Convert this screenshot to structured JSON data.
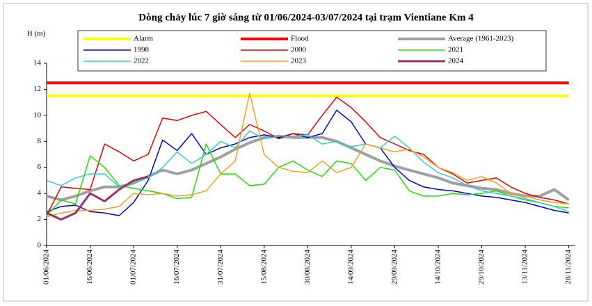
{
  "chart_data": {
    "type": "line",
    "title": "Dòng chảy lúc 7 giờ sáng từ 01/06/2024-03/07/2024 tại trạm Vientiane Km 4",
    "y_label": "H (m)",
    "x": [
      "01/06/2024",
      "06/06/2024",
      "11/06/2024",
      "16/06/2024",
      "21/06/2024",
      "26/06/2024",
      "01/07/2024",
      "06/07/2024",
      "11/07/2024",
      "16/07/2024",
      "21/07/2024",
      "26/07/2024",
      "31/07/2024",
      "05/08/2024",
      "10/08/2024",
      "15/08/2024",
      "20/08/2024",
      "25/08/2024",
      "30/08/2024",
      "04/09/2024",
      "09/09/2024",
      "14/09/2024",
      "19/09/2024",
      "24/09/2024",
      "29/09/2024",
      "04/10/2024",
      "09/10/2024",
      "14/10/2024",
      "19/10/2024",
      "24/10/2024",
      "29/10/2024",
      "03/11/2024",
      "08/11/2024",
      "13/11/2024",
      "18/11/2024",
      "23/11/2024",
      "28/11/2024"
    ],
    "xlim": [
      "01/06/2024",
      "30/11/2024"
    ],
    "xticks": [
      "01/06/2024",
      "16/06/2024",
      "01/07/2024",
      "16/07/2024",
      "31/07/2024",
      "15/08/2024",
      "30/08/2024",
      "14/09/2024",
      "29/09/2024",
      "14/10/2024",
      "29/10/2024",
      "13/11/2024",
      "28/11/2024"
    ],
    "ylim": [
      0,
      14
    ],
    "yticks": [
      0,
      2,
      4,
      6,
      8,
      10,
      12,
      14
    ],
    "series": [
      {
        "name": "Alarm",
        "color": "#ffff00",
        "line_width": 4,
        "values": [
          11.5,
          11.5,
          11.5,
          11.5,
          11.5,
          11.5,
          11.5,
          11.5,
          11.5,
          11.5,
          11.5,
          11.5,
          11.5,
          11.5,
          11.5,
          11.5,
          11.5,
          11.5,
          11.5,
          11.5,
          11.5,
          11.5,
          11.5,
          11.5,
          11.5,
          11.5,
          11.5,
          11.5,
          11.5,
          11.5,
          11.5,
          11.5,
          11.5,
          11.5,
          11.5,
          11.5,
          11.5
        ]
      },
      {
        "name": "Flood",
        "color": "#ff0000",
        "line_width": 4,
        "values": [
          12.5,
          12.5,
          12.5,
          12.5,
          12.5,
          12.5,
          12.5,
          12.5,
          12.5,
          12.5,
          12.5,
          12.5,
          12.5,
          12.5,
          12.5,
          12.5,
          12.5,
          12.5,
          12.5,
          12.5,
          12.5,
          12.5,
          12.5,
          12.5,
          12.5,
          12.5,
          12.5,
          12.5,
          12.5,
          12.5,
          12.5,
          12.5,
          12.5,
          12.5,
          12.5,
          12.5,
          12.5
        ]
      },
      {
        "name": "Average (1961-2023)",
        "color": "#a0a0a0",
        "line_width": 4,
        "values": [
          3.8,
          3.5,
          3.8,
          4.2,
          4.5,
          4.5,
          4.8,
          5.3,
          5.8,
          5.5,
          5.8,
          6.3,
          6.8,
          7.4,
          7.9,
          8.3,
          8.4,
          8.3,
          8.3,
          8.3,
          8.0,
          7.5,
          7.0,
          6.5,
          6.1,
          5.8,
          5.5,
          5.2,
          4.8,
          4.6,
          4.4,
          4.3,
          4.0,
          3.8,
          3.8,
          4.3,
          3.5
        ]
      },
      {
        "name": "1998",
        "color": "#0000cc",
        "line_width": 1.5,
        "values": [
          2.6,
          3.0,
          3.1,
          2.6,
          2.5,
          2.3,
          3.3,
          5.0,
          8.1,
          7.3,
          8.6,
          7.0,
          7.5,
          7.8,
          8.3,
          8.5,
          8.3,
          8.6,
          8.3,
          8.6,
          10.4,
          9.5,
          7.8,
          7.5,
          6.0,
          5.0,
          4.5,
          4.3,
          4.2,
          4.0,
          3.8,
          3.7,
          3.5,
          3.3,
          3.0,
          2.7,
          2.5
        ]
      },
      {
        "name": "2000",
        "color": "#e00000",
        "line_width": 1.5,
        "values": [
          2.3,
          4.5,
          4.4,
          4.3,
          7.8,
          7.2,
          6.5,
          7.0,
          9.8,
          9.6,
          10.0,
          10.3,
          9.3,
          8.3,
          9.3,
          8.8,
          8.2,
          8.6,
          8.5,
          10.0,
          11.4,
          10.6,
          9.5,
          8.3,
          7.8,
          7.3,
          7.0,
          6.0,
          5.5,
          4.8,
          5.0,
          5.2,
          4.5,
          4.0,
          3.7,
          3.5,
          3.2
        ]
      },
      {
        "name": "2021",
        "color": "#22dd00",
        "line_width": 1.5,
        "values": [
          2.3,
          3.5,
          3.2,
          6.9,
          6.0,
          4.6,
          4.4,
          4.2,
          4.0,
          3.6,
          3.7,
          7.8,
          5.5,
          5.5,
          4.6,
          4.7,
          6.0,
          6.5,
          5.8,
          5.3,
          6.5,
          6.3,
          5.0,
          6.0,
          5.8,
          4.2,
          3.8,
          3.8,
          4.0,
          3.9,
          4.0,
          4.2,
          3.8,
          3.5,
          3.3,
          3.0,
          2.9
        ]
      },
      {
        "name": "2022",
        "color": "#33cccc",
        "line_width": 1.5,
        "values": [
          5.0,
          4.6,
          5.2,
          5.5,
          5.5,
          4.5,
          4.8,
          5.2,
          6.0,
          7.2,
          6.3,
          7.0,
          8.0,
          7.5,
          8.8,
          8.2,
          8.4,
          8.4,
          8.5,
          7.8,
          8.0,
          7.6,
          7.8,
          7.5,
          8.4,
          7.5,
          6.4,
          5.6,
          5.2,
          4.6,
          4.2,
          4.0,
          3.8,
          3.6,
          3.3,
          3.0,
          2.6
        ]
      },
      {
        "name": "2023",
        "color": "#f0a020",
        "line_width": 1.5,
        "values": [
          2.2,
          2.5,
          2.7,
          2.7,
          2.8,
          3.0,
          4.0,
          3.9,
          4.0,
          3.8,
          3.9,
          4.2,
          5.5,
          6.5,
          11.7,
          7.0,
          6.0,
          5.7,
          5.6,
          6.5,
          5.6,
          6.0,
          7.8,
          7.5,
          7.2,
          7.4,
          6.8,
          6.0,
          5.6,
          5.0,
          5.3,
          4.8,
          4.0,
          3.8,
          3.5,
          3.3,
          3.2
        ]
      },
      {
        "name": "2024",
        "color": "#993366",
        "line_width": 3,
        "values": [
          2.5,
          2.0,
          2.5,
          4.0,
          3.4,
          4.3,
          5.0,
          5.3,
          null,
          null,
          null,
          null,
          null,
          null,
          null,
          null,
          null,
          null,
          null,
          null,
          null,
          null,
          null,
          null,
          null,
          null,
          null,
          null,
          null,
          null,
          null,
          null,
          null,
          null,
          null,
          null,
          null
        ]
      }
    ]
  }
}
